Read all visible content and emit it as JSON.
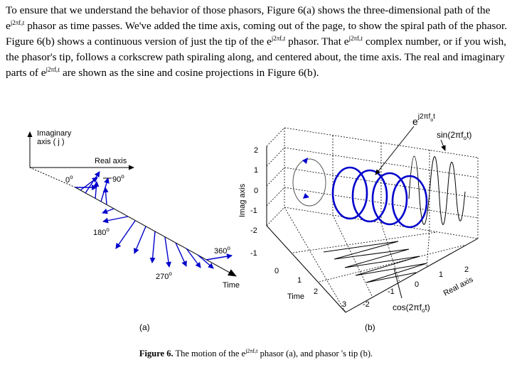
{
  "paragraph": {
    "t1": "To ensure that we understand the behavior of those phasors, Figure 6(a) shows the three-dimensional path of the e",
    "exp1": "j2πfₒt",
    "t2": " phasor as time passes.  We've added the time axis, coming out of the page, to show the spiral path of the phasor.  Figure 6(b) shows a continuous version of just the tip of the e",
    "exp2": "j2πfₒt",
    "t3": " phasor.  That e",
    "exp3": "j2πfₒt",
    "t4": " complex number, or if you wish, the phasor's tip, follows a corkscrew path spiraling along, and centered about, the time axis.  The real and imaginary parts of e",
    "exp4": "j2πfₒt",
    "t5": " are shown as the sine and cosine projections in Figure 6(b)."
  },
  "figure_a": {
    "imag_axis_label_1": "Imaginary",
    "imag_axis_label_2": "axis ( j )",
    "real_axis_label": "Real axis",
    "time_label": "Time",
    "angle_0": "0",
    "angle_90": "90",
    "angle_180": "180",
    "angle_270": "270",
    "angle_360": "360",
    "degree": "o",
    "sublabel": "(a)"
  },
  "figure_b": {
    "exp_base": "e",
    "exp_sup": "j2πf",
    "exp_sub": "o",
    "exp_t": "t",
    "sin_pre": "sin(2πf",
    "sin_sub": "o",
    "sin_post": "t)",
    "cos_pre": "cos(2πf",
    "cos_sub": "o",
    "cos_post": "t)",
    "imag_axis_title": "Imag axis",
    "real_axis_title": "Real axis",
    "time_axis_title": "Time",
    "imag_ticks": [
      "2",
      "1",
      "0",
      "-1",
      "-2"
    ],
    "time_ticks": [
      "-1",
      "0",
      "1",
      "2",
      "3"
    ],
    "real_ticks": [
      "-2",
      "-1",
      "0",
      "1",
      "2"
    ],
    "sublabel": "(b)"
  },
  "caption": {
    "label": "Figure 6.",
    "t1": "  The motion of the e",
    "exp": "j2πfₒt",
    "t2": " phasor (a), and phasor 's tip (b)."
  },
  "colors": {
    "phasor": "#0000cc",
    "text": "#000000"
  }
}
